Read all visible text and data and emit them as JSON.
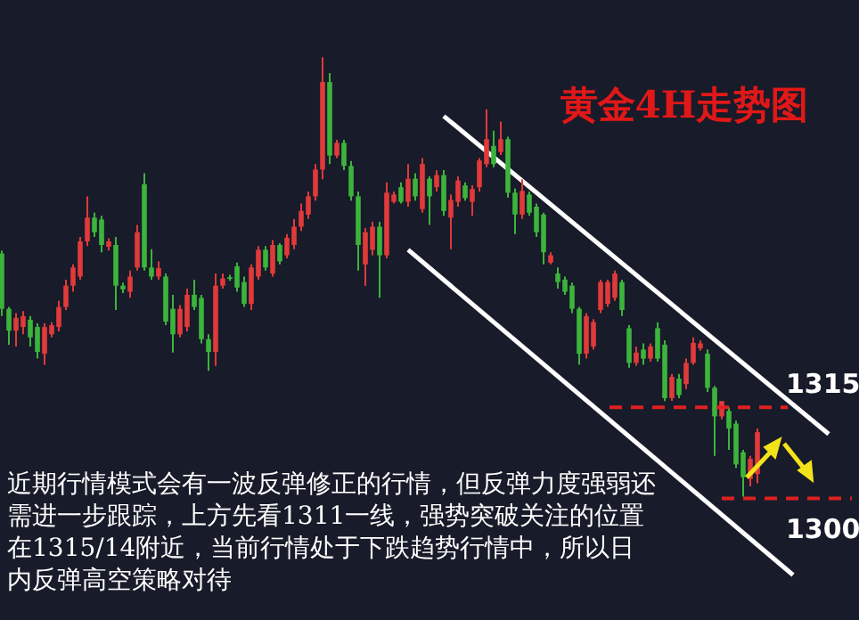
{
  "chart_data": {
    "type": "candlestick",
    "title": "黄金4H走势图",
    "categories": [
      null,
      null,
      null,
      null,
      null,
      null,
      null,
      null,
      null,
      null,
      null,
      null,
      null,
      null,
      null,
      null,
      null,
      null,
      null,
      null,
      null,
      null,
      null,
      null,
      null,
      null,
      null,
      null,
      null,
      null,
      null,
      null,
      null,
      null,
      null,
      null,
      null,
      null,
      null,
      null,
      null,
      null,
      null,
      null,
      null,
      null,
      null,
      null,
      null,
      null,
      null,
      null,
      null,
      null,
      null,
      null,
      null,
      null,
      null,
      null,
      null,
      null,
      null,
      null,
      null,
      null,
      null,
      null,
      null,
      null,
      null,
      null,
      null,
      null,
      null,
      null,
      null,
      null,
      null,
      null,
      null,
      null,
      null,
      null,
      null,
      null,
      null,
      null,
      null,
      null,
      null,
      null,
      null,
      null,
      null,
      null,
      null,
      null,
      null,
      null,
      null,
      null,
      null,
      null,
      null,
      null,
      null,
      null,
      null,
      null,
      null,
      null,
      null,
      null,
      null,
      null,
      null
    ],
    "ohlc": [
      [
        1340.3,
        1340.8,
        1330,
        1331.2
      ],
      [
        1331.2,
        1331.5,
        1325.3,
        1327.6
      ],
      [
        1327.6,
        1330.5,
        1325,
        1329.7
      ],
      [
        1328.2,
        1330.8,
        1327,
        1330
      ],
      [
        1329.4,
        1330,
        1325,
        1326.5
      ],
      [
        1328.2,
        1328.8,
        1323,
        1324.1
      ],
      [
        1323.8,
        1328.8,
        1322,
        1328.2
      ],
      [
        1327,
        1329,
        1326.5,
        1328.5
      ],
      [
        1328.2,
        1332.5,
        1327.5,
        1331.5
      ],
      [
        1331.5,
        1336,
        1331,
        1335
      ],
      [
        1335,
        1338.5,
        1334,
        1338
      ],
      [
        1336.5,
        1343,
        1336,
        1342.3
      ],
      [
        1342.3,
        1349.7,
        1341.5,
        1346.2
      ],
      [
        1346.2,
        1347,
        1343,
        1343.8
      ],
      [
        1345.9,
        1346.5,
        1340.5,
        1341.7
      ],
      [
        1341.4,
        1342.8,
        1340.8,
        1342.3
      ],
      [
        1341.7,
        1343,
        1331,
        1335
      ],
      [
        1335,
        1335.5,
        1333.8,
        1334.4
      ],
      [
        1334,
        1337.5,
        1333,
        1336.5
      ],
      [
        1338,
        1345,
        1337.5,
        1343.8
      ],
      [
        1351.7,
        1353.5,
        1337.5,
        1338
      ],
      [
        1338,
        1341,
        1336,
        1336.5
      ],
      [
        1336.5,
        1339,
        1336,
        1337.9
      ],
      [
        1336.5,
        1337,
        1328.5,
        1329.1
      ],
      [
        1331.2,
        1333.5,
        1324,
        1327
      ],
      [
        1327,
        1331.8,
        1326.5,
        1331.2
      ],
      [
        1328.2,
        1334.5,
        1327.5,
        1333.5
      ],
      [
        1333.5,
        1336,
        1331,
        1331.5
      ],
      [
        1333,
        1333.5,
        1325.5,
        1326.2
      ],
      [
        1326.2,
        1327,
        1321,
        1324.1
      ],
      [
        1324.1,
        1337,
        1321.8,
        1335
      ],
      [
        1335,
        1337,
        1334.5,
        1336.2
      ],
      [
        1336.4,
        1336.8,
        1335.8,
        1336.2
      ],
      [
        1338.2,
        1338.8,
        1334,
        1334.7
      ],
      [
        1335.6,
        1336.5,
        1331.5,
        1332
      ],
      [
        1332,
        1338.5,
        1331,
        1338
      ],
      [
        1336.5,
        1341.5,
        1336,
        1340.9
      ],
      [
        1340.9,
        1341.5,
        1337.5,
        1338
      ],
      [
        1337,
        1342.5,
        1336.5,
        1341.7
      ],
      [
        1341.7,
        1342,
        1338.5,
        1339
      ],
      [
        1340,
        1343.5,
        1339.5,
        1342.9
      ],
      [
        1341.7,
        1346,
        1341,
        1344.7
      ],
      [
        1344.7,
        1348.5,
        1344,
        1347.3
      ],
      [
        1346.7,
        1350.5,
        1346,
        1349.7
      ],
      [
        1349.7,
        1355,
        1349,
        1354.1
      ],
      [
        1354.1,
        1372.6,
        1352.5,
        1368.5
      ],
      [
        1368.5,
        1370,
        1355,
        1356.4
      ],
      [
        1356.4,
        1359,
        1356,
        1358.5
      ],
      [
        1358.5,
        1359,
        1354,
        1354.7
      ],
      [
        1354.7,
        1355.5,
        1349,
        1349.7
      ],
      [
        1349.7,
        1350.5,
        1337.5,
        1341.7
      ],
      [
        1338.5,
        1344.5,
        1335,
        1343.8
      ],
      [
        1340.9,
        1345.5,
        1340,
        1344.7
      ],
      [
        1344.7,
        1345.5,
        1333,
        1340
      ],
      [
        1340,
        1352,
        1339.5,
        1350.3
      ],
      [
        1348.8,
        1350.5,
        1348.5,
        1350
      ],
      [
        1351.2,
        1352,
        1348.5,
        1348.8
      ],
      [
        1348.8,
        1355,
        1348,
        1352.6
      ],
      [
        1352.6,
        1353.5,
        1349,
        1349.7
      ],
      [
        1347.6,
        1356,
        1347,
        1355
      ],
      [
        1352.6,
        1353,
        1345,
        1349.7
      ],
      [
        1351.2,
        1354,
        1350.5,
        1353.2
      ],
      [
        1353.2,
        1354,
        1346.5,
        1347.3
      ],
      [
        1346.2,
        1350,
        1341,
        1349.1
      ],
      [
        1348.8,
        1353,
        1348,
        1352.3
      ],
      [
        1351.5,
        1352,
        1349,
        1349.4
      ],
      [
        1348.8,
        1351.5,
        1346.5,
        1350.9
      ],
      [
        1351.2,
        1356,
        1350.5,
        1355.6
      ],
      [
        1355,
        1364,
        1354.5,
        1359.1
      ],
      [
        1358,
        1360.5,
        1354.5,
        1355
      ],
      [
        1357,
        1362,
        1356.5,
        1359.1
      ],
      [
        1359.1,
        1359.5,
        1349.5,
        1350.3
      ],
      [
        1350.3,
        1351,
        1343.5,
        1346.7
      ],
      [
        1346.7,
        1352.5,
        1346,
        1350.6
      ],
      [
        1350,
        1350.5,
        1346.5,
        1347
      ],
      [
        1348,
        1348.5,
        1343,
        1343.8
      ],
      [
        1346.7,
        1347,
        1338.5,
        1340.5
      ],
      [
        1338.8,
        1340.5,
        1338.5,
        1340
      ],
      [
        1337,
        1338,
        1334.5,
        1335.6
      ],
      [
        1336,
        1336.5,
        1333.5,
        1334
      ],
      [
        1335,
        1335.5,
        1330.5,
        1331.2
      ],
      [
        1331.2,
        1331.5,
        1322,
        1323.8
      ],
      [
        1323.8,
        1330.5,
        1323,
        1330
      ],
      [
        1325,
        1329.5,
        1324.5,
        1329
      ],
      [
        1331,
        1336,
        1330.5,
        1335.6
      ],
      [
        1332,
        1336,
        1331.5,
        1335.6
      ],
      [
        1333,
        1337.5,
        1332.5,
        1337
      ],
      [
        1335.6,
        1336,
        1330,
        1331
      ],
      [
        1328,
        1328.5,
        1321.5,
        1322.3
      ],
      [
        1322.3,
        1325,
        1321.8,
        1324
      ],
      [
        1324.5,
        1325.5,
        1322,
        1323
      ],
      [
        1323,
        1325.5,
        1322.5,
        1325
      ],
      [
        1328,
        1329,
        1322.5,
        1323
      ],
      [
        1325.3,
        1326,
        1316,
        1316.5
      ],
      [
        1316.5,
        1320.5,
        1316,
        1320
      ],
      [
        1319.7,
        1320.5,
        1316.5,
        1317
      ],
      [
        1318.8,
        1323,
        1318,
        1322.3
      ],
      [
        1322.3,
        1326.5,
        1322,
        1325.6
      ],
      [
        1324.7,
        1326,
        1324.3,
        1325.5
      ],
      [
        1323.8,
        1324.5,
        1317.5,
        1318.2
      ],
      [
        1318.2,
        1318.5,
        1307,
        1313.5
      ],
      [
        1313.5,
        1316,
        1313,
        1316
      ],
      [
        1314.4,
        1315,
        1308,
        1311.5
      ],
      [
        1312.3,
        1312.8,
        1305,
        1305.6
      ],
      [
        1307.6,
        1308,
        1300.3,
        1303.5
      ],
      [
        1303.2,
        1307,
        1302,
        1306.5
      ],
      [
        1304,
        1311.5,
        1302.5,
        1310.9
      ],
      null,
      null,
      null,
      null,
      null,
      null,
      null,
      null,
      null,
      null
    ],
    "colors": [
      "#3cb43c",
      "#3cb43c",
      "#e03a3a",
      "#e03a3a",
      "#3cb43c",
      "#3cb43c",
      "#e03a3a",
      "#e03a3a",
      "#e03a3a",
      "#e03a3a",
      "#e03a3a",
      "#e03a3a",
      "#e03a3a",
      "#3cb43c",
      "#3cb43c",
      "#e03a3a",
      "#3cb43c",
      "#3cb43c",
      "#e03a3a",
      "#e03a3a",
      "#3cb43c",
      "#3cb43c",
      "#e03a3a",
      "#3cb43c",
      "#3cb43c",
      "#e03a3a",
      "#e03a3a",
      "#3cb43c",
      "#3cb43c",
      "#3cb43c",
      "#e03a3a",
      "#e03a3a",
      "#3cb43c",
      "#3cb43c",
      "#3cb43c",
      "#e03a3a",
      "#e03a3a",
      "#3cb43c",
      "#e03a3a",
      "#3cb43c",
      "#e03a3a",
      "#e03a3a",
      "#e03a3a",
      "#e03a3a",
      "#e03a3a",
      "#e03a3a",
      "#3cb43c",
      "#e03a3a",
      "#3cb43c",
      "#3cb43c",
      "#3cb43c",
      "#e03a3a",
      "#e03a3a",
      "#3cb43c",
      "#e03a3a",
      "#e03a3a",
      "#3cb43c",
      "#e03a3a",
      "#3cb43c",
      "#e03a3a",
      "#3cb43c",
      "#e03a3a",
      "#3cb43c",
      "#e03a3a",
      "#e03a3a",
      "#3cb43c",
      "#e03a3a",
      "#e03a3a",
      "#e03a3a",
      "#3cb43c",
      "#e03a3a",
      "#3cb43c",
      "#3cb43c",
      "#e03a3a",
      "#3cb43c",
      "#3cb43c",
      "#3cb43c",
      "#e03a3a",
      "#3cb43c",
      "#3cb43c",
      "#3cb43c",
      "#3cb43c",
      "#e03a3a",
      "#e03a3a",
      "#e03a3a",
      "#e03a3a",
      "#e03a3a",
      "#3cb43c",
      "#3cb43c",
      "#e03a3a",
      "#3cb43c",
      "#e03a3a",
      "#3cb43c",
      "#3cb43c",
      "#e03a3a",
      "#3cb43c",
      "#e03a3a",
      "#e03a3a",
      "#e03a3a",
      "#3cb43c",
      "#3cb43c",
      "#e03a3a",
      "#3cb43c",
      "#3cb43c",
      "#3cb43c",
      "#e03a3a",
      "#e03a3a",
      null,
      null,
      null,
      null,
      null,
      null,
      null,
      null,
      null,
      null
    ],
    "series": [
      {
        "type": "line",
        "color": "#ffffff",
        "values": [
          null,
          null,
          null,
          null,
          null,
          null,
          null,
          null,
          null,
          null,
          null,
          null,
          null,
          null,
          null,
          null,
          null,
          null,
          null,
          null,
          null,
          null,
          null,
          null,
          null,
          null,
          null,
          null,
          null,
          null,
          null,
          null,
          null,
          null,
          null,
          null,
          null,
          null,
          null,
          null,
          null,
          null,
          null,
          null,
          null,
          null,
          null,
          null,
          null,
          null,
          null,
          null,
          null,
          null,
          null,
          null,
          null,
          null,
          null,
          null,
          null,
          null,
          1362.9,
          null,
          null,
          null,
          null,
          null,
          null,
          null,
          null,
          null,
          null,
          null,
          null,
          null,
          null,
          null,
          null,
          null,
          null,
          null,
          null,
          null,
          null,
          null,
          null,
          null,
          null,
          null,
          null,
          null,
          null,
          null,
          null,
          null,
          null,
          null,
          null,
          null,
          null,
          null,
          null,
          null,
          null,
          null,
          null,
          null,
          null,
          null,
          null,
          null,
          null,
          null,
          null,
          null,
          1310.6
        ]
      },
      {
        "type": "line",
        "color": "#ffffff",
        "values": [
          null,
          null,
          null,
          null,
          null,
          null,
          null,
          null,
          null,
          null,
          null,
          null,
          null,
          null,
          null,
          null,
          null,
          null,
          null,
          null,
          null,
          null,
          null,
          null,
          null,
          null,
          null,
          null,
          null,
          null,
          null,
          null,
          null,
          null,
          null,
          null,
          null,
          null,
          null,
          null,
          null,
          null,
          null,
          null,
          null,
          null,
          null,
          null,
          null,
          null,
          null,
          null,
          null,
          null,
          null,
          null,
          null,
          1340.9,
          null,
          null,
          null,
          null,
          null,
          null,
          null,
          null,
          null,
          null,
          null,
          null,
          null,
          null,
          null,
          null,
          null,
          null,
          null,
          null,
          null,
          null,
          null,
          null,
          null,
          null,
          null,
          null,
          null,
          null,
          null,
          null,
          null,
          null,
          null,
          null,
          null,
          null,
          null,
          null,
          null,
          null,
          null,
          null,
          null,
          null,
          null,
          null,
          null,
          null,
          null,
          null,
          null,
          1287.4,
          null,
          null,
          null,
          null,
          null
        ]
      }
    ],
    "ylim": [
      1280,
      1382
    ],
    "ref_lines": [
      {
        "axis": "y",
        "value": 1315,
        "label": "1315",
        "color": "#e02020",
        "line_style": "dashed"
      },
      {
        "axis": "y",
        "value": 1300,
        "label": "1300",
        "color": "#e02020",
        "line_style": "dashed"
      }
    ],
    "annotations": [
      "近期行情模式会有一波反弹修正的行情，但反弹力度强弱还需进一步跟踪，上方先看1311一线，强势突破关注的位置在1315/14附近，当前行情处于下跌趋势行情中，所以日内反弹高空策略对待"
    ]
  }
}
